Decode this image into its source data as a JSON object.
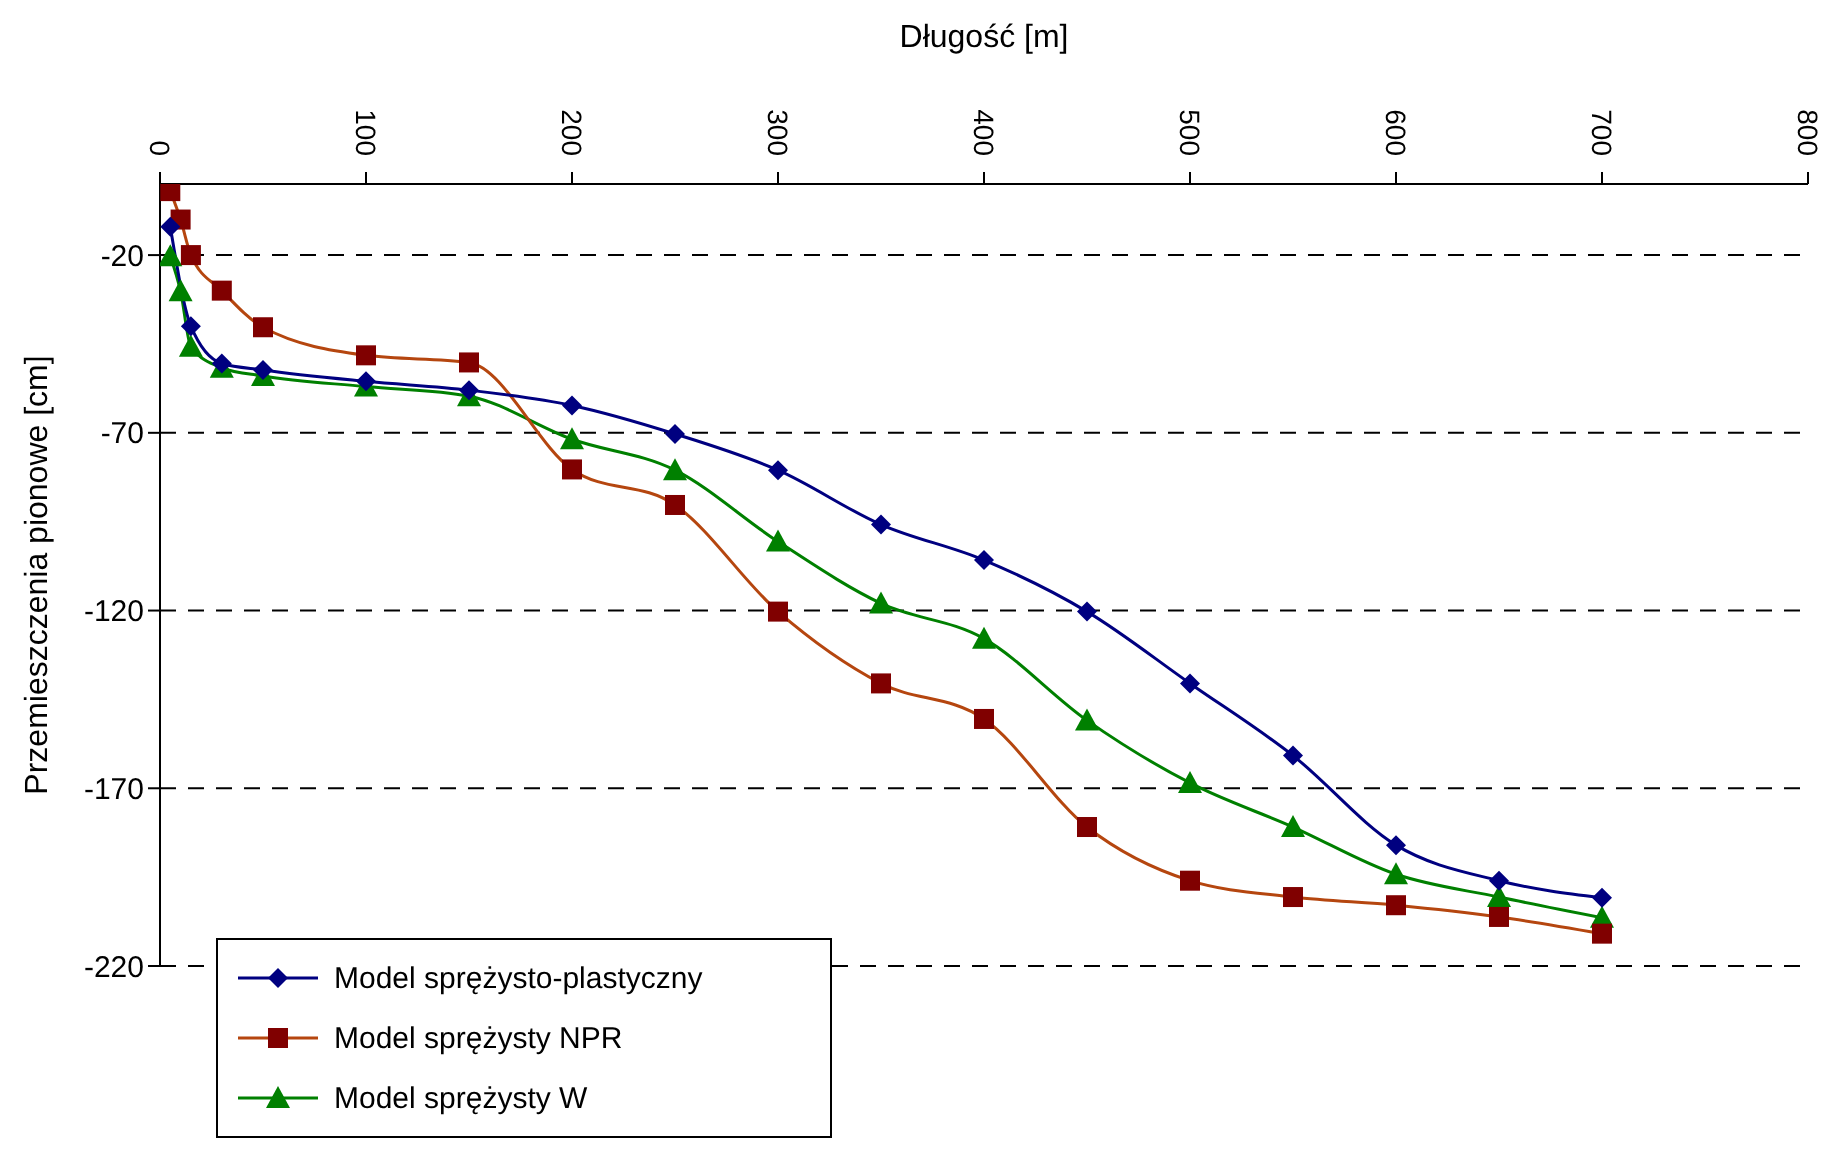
{
  "chart_data": {
    "type": "line",
    "xlabel": "Długość [m]",
    "ylabel": "Przemieszczenia pionowe [cm]",
    "xlim": [
      0,
      800
    ],
    "xticks": [
      0,
      100,
      200,
      300,
      400,
      500,
      600,
      700,
      800
    ],
    "ylim": [
      -220,
      0
    ],
    "yticks": [
      -220,
      -170,
      -120,
      -70,
      -20
    ],
    "grid": "y",
    "legend": "bottom left",
    "line_style": "solid",
    "x": [
      5,
      10,
      15,
      30,
      50,
      100,
      150,
      200,
      250,
      300,
      350,
      400,
      450,
      500,
      550,
      600,
      650,
      700
    ],
    "series": [
      {
        "name": "Model sprężysto-plastyczny",
        "color": "#000080",
        "marker": "diamond",
        "x": [
          5,
          15,
          30,
          50,
          100,
          150,
          200,
          250,
          300,
          350,
          400,
          450,
          500,
          550,
          600,
          650,
          700
        ],
        "values": [
          -12,
          -40,
          -50.5,
          -52.3,
          -55.5,
          -58,
          -62.3,
          -70.3,
          -80.5,
          -95.8,
          -105.8,
          -120.3,
          -140.5,
          -160.8,
          -186,
          -196,
          -200.8
        ]
      },
      {
        "name": "Model sprężysty NPR",
        "color": "#800000",
        "marker": "square",
        "values": [
          -2,
          -10,
          -20,
          -30,
          -40.3,
          -48.2,
          -50.2,
          -80.3,
          -90.3,
          -120.3,
          -140.5,
          -150.5,
          -180.9,
          -196,
          -200.6,
          -202.9,
          -206.2,
          -210.9
        ]
      },
      {
        "name": "Model sprężysty W",
        "color": "#008000",
        "marker": "triangle",
        "values": [
          -20.3,
          -30.2,
          -45.8,
          -51.7,
          -54,
          -57,
          -59.7,
          -71.8,
          -80.5,
          -100.6,
          -118,
          -127.9,
          -150.9,
          -168.5,
          -180.9,
          -194.2,
          -200.6,
          -206.4
        ]
      }
    ]
  }
}
